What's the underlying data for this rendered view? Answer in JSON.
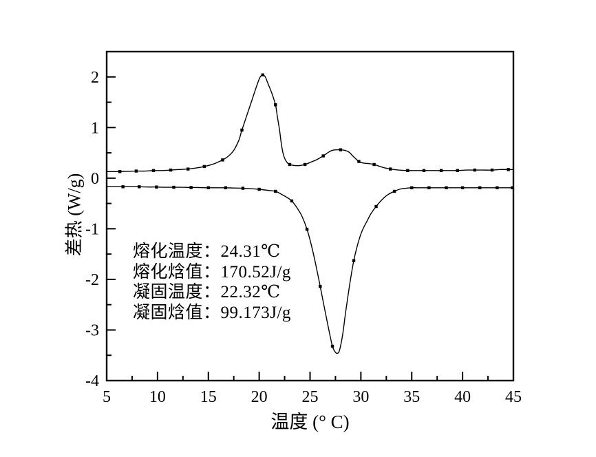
{
  "chart_data": {
    "type": "line",
    "title": "",
    "xlabel": "温度 (° C)",
    "ylabel": "差热 (W/g)",
    "xlim": [
      5,
      45
    ],
    "ylim": [
      -4,
      2.5
    ],
    "x_major_ticks": [
      5,
      10,
      15,
      20,
      25,
      30,
      35,
      40,
      45
    ],
    "x_minor_ticks": [
      7.5,
      12.5,
      17.5,
      22.5,
      27.5,
      32.5,
      37.5,
      42.5
    ],
    "y_major_ticks": [
      -4,
      -3,
      -2,
      -1,
      0,
      1,
      2
    ],
    "y_minor_ticks": [
      -3.5,
      -2.5,
      -1.5,
      -0.5,
      0.5,
      1.5
    ],
    "grid": false,
    "legend": "none",
    "line_color": "#000000",
    "marker_shape": "square",
    "series": [
      {
        "name": "melting-curve",
        "points": [
          [
            5.0,
            0.13
          ],
          [
            5.6,
            0.13
          ],
          [
            6.3,
            0.13
          ],
          [
            7.1,
            0.135
          ],
          [
            7.9,
            0.14
          ],
          [
            8.8,
            0.14
          ],
          [
            9.6,
            0.15
          ],
          [
            10.4,
            0.15
          ],
          [
            11.3,
            0.16
          ],
          [
            12.1,
            0.17
          ],
          [
            13.0,
            0.18
          ],
          [
            13.8,
            0.2
          ],
          [
            14.6,
            0.23
          ],
          [
            15.5,
            0.28
          ],
          [
            16.4,
            0.36
          ],
          [
            17.0,
            0.44
          ],
          [
            17.5,
            0.55
          ],
          [
            18.0,
            0.75
          ],
          [
            18.3,
            0.95
          ],
          [
            18.8,
            1.25
          ],
          [
            19.3,
            1.55
          ],
          [
            19.8,
            1.85
          ],
          [
            20.1,
            2.0
          ],
          [
            20.35,
            2.04
          ],
          [
            20.6,
            2.0
          ],
          [
            20.9,
            1.85
          ],
          [
            21.2,
            1.7
          ],
          [
            21.6,
            1.45
          ],
          [
            21.8,
            1.2
          ],
          [
            22.0,
            0.95
          ],
          [
            22.2,
            0.65
          ],
          [
            22.4,
            0.45
          ],
          [
            22.7,
            0.32
          ],
          [
            23.0,
            0.27
          ],
          [
            23.5,
            0.25
          ],
          [
            24.0,
            0.25
          ],
          [
            24.5,
            0.27
          ],
          [
            25.0,
            0.31
          ],
          [
            25.6,
            0.36
          ],
          [
            26.3,
            0.44
          ],
          [
            26.8,
            0.51
          ],
          [
            27.2,
            0.55
          ],
          [
            27.6,
            0.56
          ],
          [
            28.0,
            0.56
          ],
          [
            28.4,
            0.55
          ],
          [
            28.8,
            0.52
          ],
          [
            29.1,
            0.46
          ],
          [
            29.4,
            0.4
          ],
          [
            29.8,
            0.33
          ],
          [
            30.2,
            0.3
          ],
          [
            30.7,
            0.29
          ],
          [
            31.3,
            0.27
          ],
          [
            31.9,
            0.23
          ],
          [
            32.4,
            0.2
          ],
          [
            32.9,
            0.18
          ],
          [
            33.7,
            0.16
          ],
          [
            34.6,
            0.15
          ],
          [
            35.4,
            0.15
          ],
          [
            36.2,
            0.15
          ],
          [
            37.0,
            0.15
          ],
          [
            37.9,
            0.15
          ],
          [
            38.7,
            0.15
          ],
          [
            39.5,
            0.15
          ],
          [
            40.4,
            0.16
          ],
          [
            41.2,
            0.16
          ],
          [
            42.0,
            0.16
          ],
          [
            42.9,
            0.16
          ],
          [
            43.7,
            0.17
          ],
          [
            44.5,
            0.17
          ],
          [
            45.0,
            0.17
          ]
        ],
        "markers": [
          [
            6.3,
            0.13
          ],
          [
            7.9,
            0.14
          ],
          [
            9.6,
            0.15
          ],
          [
            11.3,
            0.16
          ],
          [
            13.0,
            0.18
          ],
          [
            14.6,
            0.23
          ],
          [
            16.4,
            0.36
          ],
          [
            18.3,
            0.95
          ],
          [
            20.35,
            2.04
          ],
          [
            21.6,
            1.45
          ],
          [
            23.0,
            0.27
          ],
          [
            24.5,
            0.27
          ],
          [
            26.3,
            0.44
          ],
          [
            28.0,
            0.56
          ],
          [
            29.8,
            0.33
          ],
          [
            31.3,
            0.27
          ],
          [
            32.9,
            0.18
          ],
          [
            34.6,
            0.15
          ],
          [
            36.2,
            0.15
          ],
          [
            37.9,
            0.15
          ],
          [
            39.5,
            0.15
          ],
          [
            41.2,
            0.16
          ],
          [
            42.9,
            0.16
          ],
          [
            44.5,
            0.17
          ]
        ]
      },
      {
        "name": "freezing-curve",
        "points": [
          [
            5.0,
            -0.17
          ],
          [
            5.8,
            -0.17
          ],
          [
            6.6,
            -0.17
          ],
          [
            7.4,
            -0.17
          ],
          [
            8.2,
            -0.17
          ],
          [
            9.0,
            -0.175
          ],
          [
            9.9,
            -0.175
          ],
          [
            10.7,
            -0.18
          ],
          [
            11.6,
            -0.18
          ],
          [
            12.4,
            -0.18
          ],
          [
            13.3,
            -0.185
          ],
          [
            14.1,
            -0.185
          ],
          [
            15.0,
            -0.19
          ],
          [
            15.8,
            -0.19
          ],
          [
            16.7,
            -0.19
          ],
          [
            17.5,
            -0.195
          ],
          [
            18.4,
            -0.2
          ],
          [
            19.2,
            -0.21
          ],
          [
            20.0,
            -0.22
          ],
          [
            20.8,
            -0.24
          ],
          [
            21.6,
            -0.26
          ],
          [
            22.2,
            -0.32
          ],
          [
            22.8,
            -0.39
          ],
          [
            23.2,
            -0.45
          ],
          [
            23.7,
            -0.58
          ],
          [
            24.2,
            -0.75
          ],
          [
            24.7,
            -1.01
          ],
          [
            25.1,
            -1.3
          ],
          [
            25.5,
            -1.65
          ],
          [
            26.0,
            -2.14
          ],
          [
            26.4,
            -2.55
          ],
          [
            26.8,
            -2.95
          ],
          [
            27.2,
            -3.32
          ],
          [
            27.5,
            -3.44
          ],
          [
            27.7,
            -3.46
          ],
          [
            27.9,
            -3.4
          ],
          [
            28.2,
            -3.1
          ],
          [
            28.5,
            -2.65
          ],
          [
            28.9,
            -2.1
          ],
          [
            29.3,
            -1.63
          ],
          [
            29.7,
            -1.3
          ],
          [
            30.1,
            -1.05
          ],
          [
            30.6,
            -0.85
          ],
          [
            31.0,
            -0.7
          ],
          [
            31.5,
            -0.56
          ],
          [
            32.1,
            -0.42
          ],
          [
            32.7,
            -0.32
          ],
          [
            33.3,
            -0.26
          ],
          [
            33.8,
            -0.22
          ],
          [
            34.4,
            -0.2
          ],
          [
            35.0,
            -0.19
          ],
          [
            35.8,
            -0.19
          ],
          [
            36.7,
            -0.19
          ],
          [
            37.5,
            -0.19
          ],
          [
            38.4,
            -0.19
          ],
          [
            39.2,
            -0.19
          ],
          [
            40.0,
            -0.19
          ],
          [
            40.9,
            -0.19
          ],
          [
            41.7,
            -0.19
          ],
          [
            42.5,
            -0.19
          ],
          [
            43.4,
            -0.19
          ],
          [
            44.2,
            -0.19
          ],
          [
            44.9,
            -0.19
          ],
          [
            45.0,
            -0.19
          ]
        ],
        "markers": [
          [
            6.6,
            -0.17
          ],
          [
            8.2,
            -0.17
          ],
          [
            9.9,
            -0.175
          ],
          [
            11.6,
            -0.18
          ],
          [
            13.3,
            -0.185
          ],
          [
            15.0,
            -0.19
          ],
          [
            16.7,
            -0.19
          ],
          [
            18.4,
            -0.2
          ],
          [
            20.0,
            -0.22
          ],
          [
            21.6,
            -0.26
          ],
          [
            23.2,
            -0.45
          ],
          [
            24.7,
            -1.01
          ],
          [
            26.0,
            -2.14
          ],
          [
            27.2,
            -3.32
          ],
          [
            29.3,
            -1.63
          ],
          [
            31.5,
            -0.56
          ],
          [
            33.3,
            -0.26
          ],
          [
            35.0,
            -0.19
          ],
          [
            36.7,
            -0.19
          ],
          [
            38.4,
            -0.19
          ],
          [
            40.0,
            -0.19
          ],
          [
            41.7,
            -0.19
          ],
          [
            43.4,
            -0.19
          ],
          [
            44.9,
            -0.19
          ]
        ]
      }
    ],
    "annotation": {
      "lines": [
        "熔化温度：24.31℃",
        "熔化焓值：170.52J/g",
        "凝固温度：22.32℃",
        "凝固焓值：99.173J/g"
      ],
      "melting_temperature_c": 24.31,
      "melting_enthalpy_j_per_g": 170.52,
      "freezing_temperature_c": 22.32,
      "freezing_enthalpy_j_per_g": 99.173
    }
  }
}
